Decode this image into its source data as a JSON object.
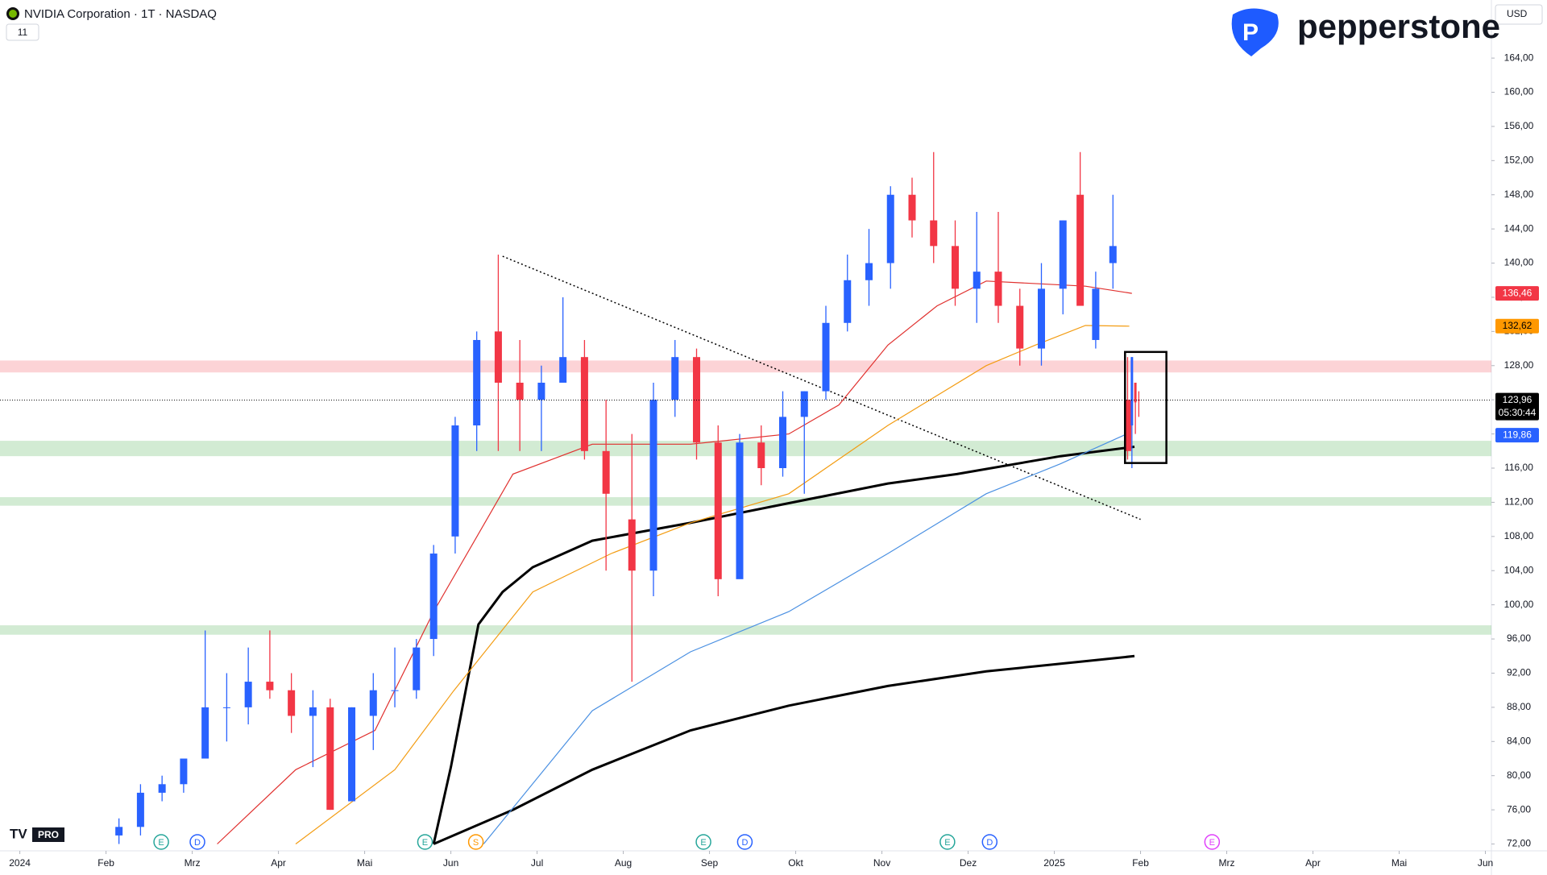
{
  "header": {
    "symbol": "NVIDIA Corporation · 1T · NASDAQ",
    "interval_count": "11",
    "currency": "USD",
    "brand": "pepperstone",
    "badge": "PRO"
  },
  "chart_data": {
    "type": "candlestick",
    "xlim": [
      -0.23,
      17.07
    ],
    "ylim": [
      71.2,
      170.8
    ],
    "xticks": [
      {
        "value": 0,
        "label": "2024"
      },
      {
        "value": 1,
        "label": "Feb"
      },
      {
        "value": 2,
        "label": "Mrz"
      },
      {
        "value": 3,
        "label": "Apr"
      },
      {
        "value": 4,
        "label": "Mai"
      },
      {
        "value": 5,
        "label": "Jun"
      },
      {
        "value": 6,
        "label": "Jul"
      },
      {
        "value": 7,
        "label": "Aug"
      },
      {
        "value": 8,
        "label": "Sep"
      },
      {
        "value": 9,
        "label": "Okt"
      },
      {
        "value": 10,
        "label": "Nov"
      },
      {
        "value": 11,
        "label": "Dez"
      },
      {
        "value": 12,
        "label": "2025"
      },
      {
        "value": 13,
        "label": "Feb"
      },
      {
        "value": 14,
        "label": "Mrz"
      },
      {
        "value": 15,
        "label": "Apr"
      },
      {
        "value": 16,
        "label": "Mai"
      },
      {
        "value": 17,
        "label": "Jun"
      }
    ],
    "yticks": [
      {
        "value": 72,
        "label": "72,00"
      },
      {
        "value": 76,
        "label": "76,00"
      },
      {
        "value": 80,
        "label": "80,00"
      },
      {
        "value": 84,
        "label": "84,00"
      },
      {
        "value": 88,
        "label": "88,00"
      },
      {
        "value": 92,
        "label": "92,00"
      },
      {
        "value": 96,
        "label": "96,00"
      },
      {
        "value": 100,
        "label": "100,00"
      },
      {
        "value": 104,
        "label": "104,00"
      },
      {
        "value": 108,
        "label": "108,00"
      },
      {
        "value": 112,
        "label": "112,00"
      },
      {
        "value": 116,
        "label": "116,00"
      },
      {
        "value": 120,
        "label": "120,00"
      },
      {
        "value": 124,
        "label": "124,00"
      },
      {
        "value": 128,
        "label": "128,00"
      },
      {
        "value": 132,
        "label": "132,00"
      },
      {
        "value": 136,
        "label": "136,00"
      },
      {
        "value": 140,
        "label": "140,00"
      },
      {
        "value": 144,
        "label": "144,00"
      },
      {
        "value": 148,
        "label": "148,00"
      },
      {
        "value": 152,
        "label": "152,00"
      },
      {
        "value": 156,
        "label": "156,00"
      },
      {
        "value": 160,
        "label": "160,00"
      },
      {
        "value": 164,
        "label": "164,00"
      }
    ],
    "candles": {
      "up_color": "#2962ff",
      "down_color": "#f23645",
      "x": [
        1.15,
        1.4,
        1.65,
        1.9,
        2.15,
        2.4,
        2.65,
        2.9,
        3.15,
        3.4,
        3.6,
        3.85,
        4.1,
        4.35,
        4.6,
        4.8,
        5.05,
        5.3,
        5.55,
        5.8,
        6.05,
        6.3,
        6.55,
        6.8,
        7.1,
        7.35,
        7.6,
        7.85,
        8.1,
        8.35,
        8.6,
        8.85,
        9.1,
        9.35,
        9.6,
        9.85,
        10.1,
        10.35,
        10.6,
        10.85,
        11.1,
        11.35,
        11.6,
        11.85,
        12.1,
        12.3,
        12.48,
        12.68,
        12.85,
        12.9,
        12.94,
        12.98
      ],
      "open": [
        73,
        74,
        78,
        79,
        82,
        88,
        88,
        91,
        90,
        87,
        88,
        77,
        87,
        90,
        90,
        96,
        108,
        121,
        132,
        126,
        124,
        126,
        129,
        118,
        110,
        104,
        124,
        129,
        119,
        103,
        119,
        116,
        122,
        125,
        133,
        138,
        140,
        148,
        145,
        142,
        137,
        139,
        135,
        130,
        137,
        148,
        131,
        140,
        124,
        121,
        126,
        124
      ],
      "high": [
        75,
        79,
        80,
        82,
        97,
        92,
        95,
        97,
        92,
        90,
        89,
        88,
        92,
        95,
        96,
        107,
        122,
        132,
        141,
        131,
        128,
        136,
        131,
        124,
        120,
        126,
        131,
        130,
        121,
        120,
        121,
        125,
        125,
        135,
        141,
        144,
        149,
        150,
        153,
        145,
        146,
        146,
        137,
        140,
        145,
        153,
        139,
        148,
        129,
        129,
        126,
        125
      ],
      "low": [
        72,
        73,
        77,
        78,
        82,
        84,
        86,
        89,
        85,
        81,
        76,
        77,
        83,
        88,
        89,
        94,
        106,
        118,
        118,
        118,
        118,
        126,
        117,
        104,
        91,
        101,
        122,
        117,
        101,
        104,
        114,
        115,
        113,
        124,
        132,
        135,
        137,
        143,
        140,
        135,
        133,
        133,
        128,
        128,
        134,
        138,
        130,
        137,
        117,
        116,
        120,
        122
      ],
      "close": [
        74,
        78,
        79,
        82,
        88,
        88,
        91,
        90,
        87,
        88,
        76,
        88,
        90,
        90,
        95,
        106,
        121,
        131,
        126,
        124,
        126,
        129,
        118,
        113,
        104,
        124,
        129,
        119,
        103,
        119,
        116,
        122,
        125,
        133,
        138,
        140,
        148,
        145,
        142,
        137,
        139,
        135,
        130,
        137,
        145,
        135,
        137,
        142,
        118,
        129,
        123.7,
        123.96
      ]
    },
    "lines": [
      {
        "color": "#000000",
        "width": 3,
        "x": [
          4.8,
          5.0,
          5.32,
          5.6,
          5.95,
          6.64,
          7.78,
          8.92,
          10.07,
          10.87,
          12.07,
          12.93
        ],
        "values": [
          72,
          81,
          97.7,
          101.5,
          104.4,
          107.5,
          109.6,
          111.9,
          114.2,
          115.3,
          117.4,
          118.5
        ]
      },
      {
        "color": "#000000",
        "width": 3,
        "x": [
          4.8,
          5.72,
          6.64,
          7.78,
          8.92,
          10.07,
          11.21,
          12.36,
          12.93
        ],
        "values": [
          72,
          76,
          80.7,
          85.3,
          88.2,
          90.5,
          92.2,
          93.4,
          94
        ]
      },
      {
        "color": "#4a90e2",
        "width": 1.2,
        "x": [
          5.38,
          6.64,
          7.78,
          8.92,
          10.07,
          11.21,
          12.07,
          12.81
        ],
        "values": [
          72,
          87.6,
          94.5,
          99.2,
          106,
          113,
          116.5,
          119.86
        ]
      },
      {
        "color": "#f39c12",
        "width": 1.2,
        "x": [
          3.2,
          4.35,
          5.03,
          5.95,
          6.86,
          7.78,
          8.92,
          10.07,
          11.21,
          11.78,
          12.36,
          12.87
        ],
        "values": [
          72,
          80.7,
          89.9,
          101.5,
          106,
          109.6,
          113,
          121,
          128,
          130.4,
          132.7,
          132.62
        ]
      },
      {
        "color": "#e0302e",
        "width": 1.2,
        "x": [
          2.29,
          3.2,
          4.12,
          4.8,
          5.72,
          6.64,
          7.78,
          8.92,
          9.5,
          10.07,
          10.64,
          11.21,
          12.36,
          12.9
        ],
        "values": [
          72,
          80.7,
          85.3,
          99.2,
          115.3,
          118.8,
          118.8,
          120,
          123.4,
          130.4,
          135,
          137.9,
          137.3,
          136.46
        ]
      }
    ],
    "zones": [
      {
        "low": 127.2,
        "high": 128.6,
        "color": "rgba(242,54,69,0.22)"
      },
      {
        "low": 117.4,
        "high": 119.2,
        "color": "rgba(76,175,80,0.25)"
      },
      {
        "low": 111.6,
        "high": 112.6,
        "color": "rgba(76,175,80,0.25)"
      },
      {
        "low": 96.5,
        "high": 97.6,
        "color": "rgba(76,175,80,0.25)"
      }
    ],
    "trendline": {
      "x": [
        5.6,
        13.0
      ],
      "values": [
        140.8,
        110
      ]
    },
    "box": {
      "x": [
        12.82,
        13.3
      ],
      "values": [
        129.6,
        116.6
      ]
    },
    "price_labels": [
      {
        "value": 136.46,
        "label": "136,46",
        "color": "#f23645"
      },
      {
        "value": 132.62,
        "label": "132,62",
        "color": "#ff9800"
      },
      {
        "value": 119.86,
        "label": "119,86",
        "color": "#2962ff"
      },
      {
        "value": 123.96,
        "label": "123,96",
        "color": "#000000"
      }
    ],
    "countdown": "05:30:44",
    "events": [
      {
        "x": 1.64,
        "label": "E",
        "color": "#26a69a"
      },
      {
        "x": 2.06,
        "label": "D",
        "color": "#2962ff"
      },
      {
        "x": 4.7,
        "label": "E",
        "color": "#26a69a"
      },
      {
        "x": 5.29,
        "label": "S",
        "color": "#ff9800"
      },
      {
        "x": 7.93,
        "label": "E",
        "color": "#26a69a"
      },
      {
        "x": 8.41,
        "label": "D",
        "color": "#2962ff"
      },
      {
        "x": 10.76,
        "label": "E",
        "color": "#26a69a"
      },
      {
        "x": 11.25,
        "label": "D",
        "color": "#2962ff"
      },
      {
        "x": 13.83,
        "label": "E",
        "color": "#e040fb"
      }
    ]
  }
}
